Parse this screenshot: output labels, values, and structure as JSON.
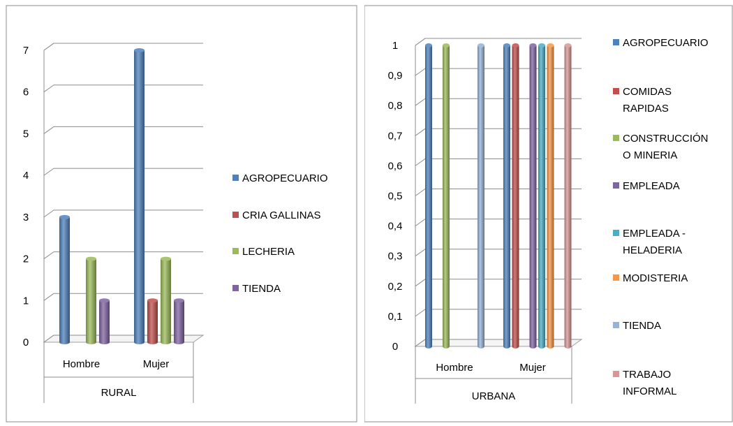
{
  "chart_data": [
    {
      "type": "bar",
      "categories": [
        "Hombre",
        "Mujer"
      ],
      "group_label": "RURAL",
      "ylim": [
        0,
        7
      ],
      "yticks": [
        "0",
        "1",
        "2",
        "3",
        "4",
        "5",
        "6",
        "7"
      ],
      "grid": true,
      "legend_position": "right",
      "series": [
        {
          "name": "AGROPECUARIO",
          "color": "#4F81BD",
          "values": [
            3,
            7
          ]
        },
        {
          "name": "CRIA GALLINAS",
          "color": "#C0504D",
          "values": [
            0,
            1
          ]
        },
        {
          "name": "LECHERIA",
          "color": "#9BBB59",
          "values": [
            2,
            2
          ]
        },
        {
          "name": "TIENDA",
          "color": "#8064A2",
          "values": [
            1,
            1
          ]
        }
      ]
    },
    {
      "type": "bar",
      "categories": [
        "Hombre",
        "Mujer"
      ],
      "group_label": "URBANA",
      "ylim": [
        0,
        1
      ],
      "yticks": [
        "0",
        "0,1",
        "0,2",
        "0,3",
        "0,4",
        "0,5",
        "0,6",
        "0,7",
        "0,8",
        "0,9",
        "1"
      ],
      "grid": true,
      "legend_position": "right",
      "series": [
        {
          "name": "AGROPECUARIO",
          "color": "#4F81BD",
          "values": [
            1,
            1
          ]
        },
        {
          "name": "COMIDAS RAPIDAS",
          "color": "#C0504D",
          "values": [
            0,
            1
          ]
        },
        {
          "name": "CONSTRUCCIÓN O MINERIA",
          "color": "#9BBB59",
          "values": [
            1,
            0
          ]
        },
        {
          "name": "EMPLEADA",
          "color": "#8064A2",
          "values": [
            0,
            1
          ]
        },
        {
          "name": "EMPLEADA - HELADERIA",
          "color": "#4BACC6",
          "values": [
            0,
            1
          ]
        },
        {
          "name": "MODISTERIA",
          "color": "#F79646",
          "values": [
            0,
            1
          ]
        },
        {
          "name": "TIENDA",
          "color": "#95B3D7",
          "values": [
            1,
            0
          ]
        },
        {
          "name": "TRABAJO INFORMAL",
          "color": "#D99694",
          "values": [
            0,
            1
          ]
        }
      ]
    }
  ]
}
